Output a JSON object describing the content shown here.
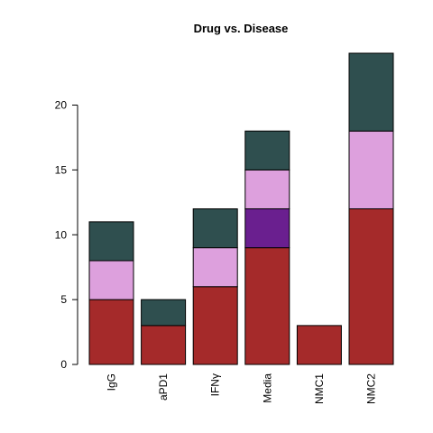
{
  "chart_data": {
    "type": "bar",
    "stacked": true,
    "title": "Drug vs. Disease",
    "xlabel": "",
    "ylabel": "",
    "categories": [
      "IgG",
      "aPD1",
      "IFNγ",
      "Media",
      "NMC1",
      "NMC2"
    ],
    "series": [
      {
        "color": "#a52a2a",
        "values": [
          5,
          3,
          6,
          9,
          3,
          12
        ]
      },
      {
        "color": "#6a1f8f",
        "values": [
          0,
          0,
          0,
          3,
          0,
          0
        ]
      },
      {
        "color": "#dda0dd",
        "values": [
          3,
          0,
          3,
          3,
          0,
          6
        ]
      },
      {
        "color": "#2f4f4f",
        "values": [
          3,
          2,
          3,
          3,
          0,
          6
        ]
      }
    ],
    "ylim": [
      0,
      24
    ],
    "yticks": [
      0,
      5,
      10,
      15,
      20
    ],
    "grid": false,
    "legend": "none"
  }
}
